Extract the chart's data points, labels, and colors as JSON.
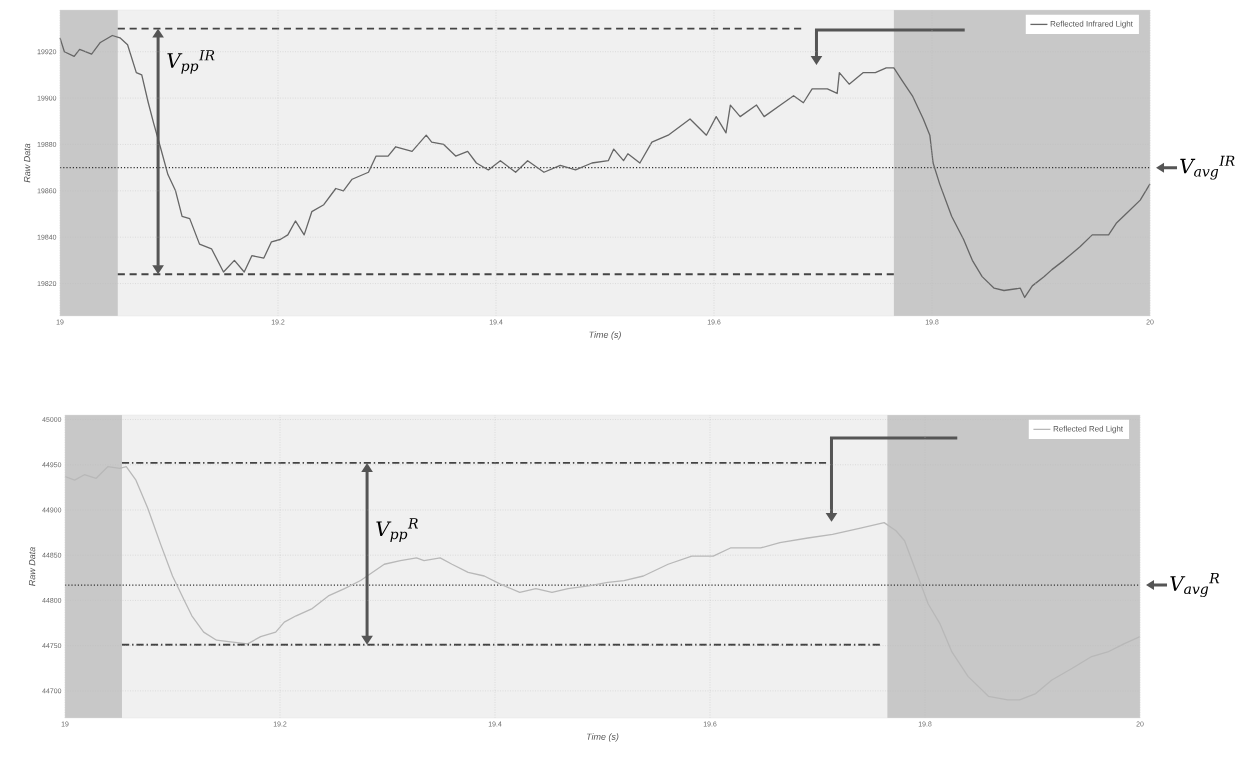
{
  "chart_data": [
    {
      "type": "line",
      "xlabel": "Time (s)",
      "ylabel": "Raw Data",
      "xlim": [
        19,
        20
      ],
      "ylim": [
        19806,
        19938
      ],
      "xticks": [
        19,
        19.2,
        19.4,
        19.6,
        19.8,
        20
      ],
      "yticks": [
        19820,
        19840,
        19860,
        19880,
        19900,
        19920
      ],
      "grid": true,
      "legend": "top right",
      "series": [
        {
          "name": "Reflected Infrared Light",
          "color": "#666666",
          "line_style": "solid",
          "x": [
            19.0,
            19.004,
            19.013,
            19.018,
            19.029,
            19.037,
            19.048,
            19.055,
            19.062,
            19.07,
            19.075,
            19.081,
            19.086,
            19.092,
            19.099,
            19.106,
            19.112,
            19.119,
            19.128,
            19.139,
            19.15,
            19.16,
            19.169,
            19.176,
            19.187,
            19.194,
            19.202,
            19.209,
            19.216,
            19.224,
            19.231,
            19.242,
            19.253,
            19.26,
            19.268,
            19.283,
            19.29,
            19.301,
            19.308,
            19.323,
            19.336,
            19.341,
            19.352,
            19.363,
            19.374,
            19.382,
            19.393,
            19.404,
            19.418,
            19.429,
            19.444,
            19.459,
            19.473,
            19.488,
            19.503,
            19.508,
            19.517,
            19.521,
            19.532,
            19.543,
            19.558,
            19.578,
            19.593,
            19.602,
            19.611,
            19.615,
            19.624,
            19.639,
            19.646,
            19.661,
            19.673,
            19.682,
            19.69,
            19.704,
            19.713,
            19.715,
            19.724,
            19.737,
            19.748,
            19.758,
            19.765,
            19.772,
            19.782,
            19.792,
            19.798,
            19.801,
            19.807,
            19.818,
            19.829,
            19.837,
            19.846,
            19.857,
            19.866,
            19.881,
            19.885,
            19.892,
            19.903,
            19.91,
            19.921,
            19.936,
            19.947,
            19.962,
            19.969,
            19.98,
            19.991,
            20.0
          ],
          "values": [
            19926,
            19920,
            19918,
            19921,
            19919,
            19924,
            19927,
            19926,
            19923,
            19911,
            19910,
            19898,
            19889,
            19879,
            19867,
            19860,
            19849,
            19848,
            19837,
            19835,
            19825,
            19830,
            19825,
            19832,
            19831,
            19838,
            19839,
            19841,
            19847,
            19841,
            19851,
            19854,
            19861,
            19860,
            19865,
            19868,
            19875,
            19875,
            19879,
            19877,
            19884,
            19881,
            19880,
            19875,
            19877,
            19872,
            19869,
            19873,
            19868,
            19873,
            19868,
            19871,
            19869,
            19872,
            19873,
            19878,
            19873,
            19876,
            19872,
            19881,
            19884,
            19891,
            19884,
            19892,
            19885,
            19897,
            19892,
            19897,
            19892,
            19897,
            19901,
            19898,
            19904,
            19904,
            19902,
            19911,
            19906,
            19911,
            19911,
            19913,
            19913,
            19908,
            19901,
            19891,
            19884,
            19872,
            19863,
            19849,
            19839,
            19830,
            19823,
            19818,
            19817,
            19818,
            19814,
            19819,
            19823,
            19826,
            19830,
            19836,
            19841,
            19841,
            19846,
            19851,
            19856,
            19863
          ]
        },
        {
          "color": "#444444",
          "line_style": "dashed",
          "x": [
            19.053,
            19.68
          ],
          "values": [
            19930,
            19930
          ]
        },
        {
          "color": "#444444",
          "line_style": "dashed",
          "x": [
            19.053,
            19.765
          ],
          "values": [
            19824,
            19824
          ]
        }
      ],
      "ref_lines": [
        {
          "axis": "y",
          "value": 19870,
          "color": "#333333",
          "line_style": "dotted"
        }
      ],
      "bands": [
        {
          "axis": "x",
          "from": 19,
          "to": 19.053,
          "color": "#c8c8c8"
        },
        {
          "axis": "x",
          "from": 19.765,
          "to": 20,
          "color": "#c8c8c8"
        }
      ],
      "annotations": [
        {
          "text": "V$_{pp}$$^{IR}$",
          "x": 19.09,
          "y": 19930
        },
        {
          "text": "V$_{avg}$$^{IR}$",
          "x": 20,
          "y": 19870
        }
      ]
    },
    {
      "type": "line",
      "xlabel": "Time (s)",
      "ylabel": "Raw Data",
      "xlim": [
        19,
        20
      ],
      "ylim": [
        44670,
        45005
      ],
      "xticks": [
        19,
        19.2,
        19.4,
        19.6,
        19.8,
        20
      ],
      "yticks": [
        44700,
        44750,
        44800,
        44850,
        44900,
        44950,
        45000
      ],
      "grid": true,
      "legend": "top right",
      "series": [
        {
          "name": "Reflected Red Light",
          "color": "#b8b8b8",
          "line_style": "solid",
          "x": [
            19.0,
            19.009,
            19.018,
            19.029,
            19.04,
            19.051,
            19.057,
            19.066,
            19.077,
            19.089,
            19.1,
            19.111,
            19.118,
            19.129,
            19.141,
            19.156,
            19.17,
            19.182,
            19.196,
            19.204,
            19.215,
            19.23,
            19.245,
            19.26,
            19.275,
            19.286,
            19.297,
            19.312,
            19.327,
            19.334,
            19.349,
            19.36,
            19.375,
            19.39,
            19.405,
            19.423,
            19.438,
            19.453,
            19.468,
            19.487,
            19.505,
            19.52,
            19.538,
            19.561,
            19.583,
            19.603,
            19.619,
            19.647,
            19.665,
            19.691,
            19.714,
            19.74,
            19.762,
            19.773,
            19.781,
            19.792,
            19.803,
            19.814,
            19.825,
            19.84,
            19.859,
            19.877,
            19.888,
            19.903,
            19.918,
            19.937,
            19.955,
            19.97,
            19.985,
            20.0
          ],
          "values": [
            44937,
            44933,
            44939,
            44935,
            44948,
            44946,
            44948,
            44933,
            44902,
            44862,
            44827,
            44800,
            44783,
            44765,
            44756,
            44754,
            44752,
            44760,
            44765,
            44776,
            44783,
            44791,
            44805,
            44813,
            44822,
            44831,
            44840,
            44844,
            44847,
            44844,
            44847,
            44840,
            44831,
            44827,
            44818,
            44809,
            44813,
            44809,
            44813,
            44816,
            44820,
            44822,
            44827,
            44840,
            44849,
            44849,
            44858,
            44858,
            44864,
            44869,
            44873,
            44880,
            44886,
            44877,
            44866,
            44831,
            44796,
            44774,
            44743,
            44716,
            44694,
            44690,
            44690,
            44697,
            44712,
            44725,
            44738,
            44743,
            44752,
            44760
          ]
        },
        {
          "color": "#444444",
          "line_style": "dashdot",
          "x": [
            19.053,
            19.708
          ],
          "values": [
            44952,
            44952
          ]
        },
        {
          "color": "#444444",
          "line_style": "dashdot",
          "x": [
            19.053,
            19.758
          ],
          "values": [
            44751,
            44751
          ]
        }
      ],
      "ref_lines": [
        {
          "axis": "y",
          "value": 44817,
          "color": "#333333",
          "line_style": "dotted"
        }
      ],
      "bands": [
        {
          "axis": "x",
          "from": 19,
          "to": 19.053,
          "color": "#c8c8c8"
        },
        {
          "axis": "x",
          "from": 19.765,
          "to": 20,
          "color": "#c8c8c8"
        }
      ],
      "annotations": [
        {
          "text": "V$_{pp}$$^{R}$",
          "x": 19.281,
          "y": 44952
        },
        {
          "text": "V$_{avg}$$^{R}$",
          "x": 20,
          "y": 44817
        }
      ]
    }
  ]
}
